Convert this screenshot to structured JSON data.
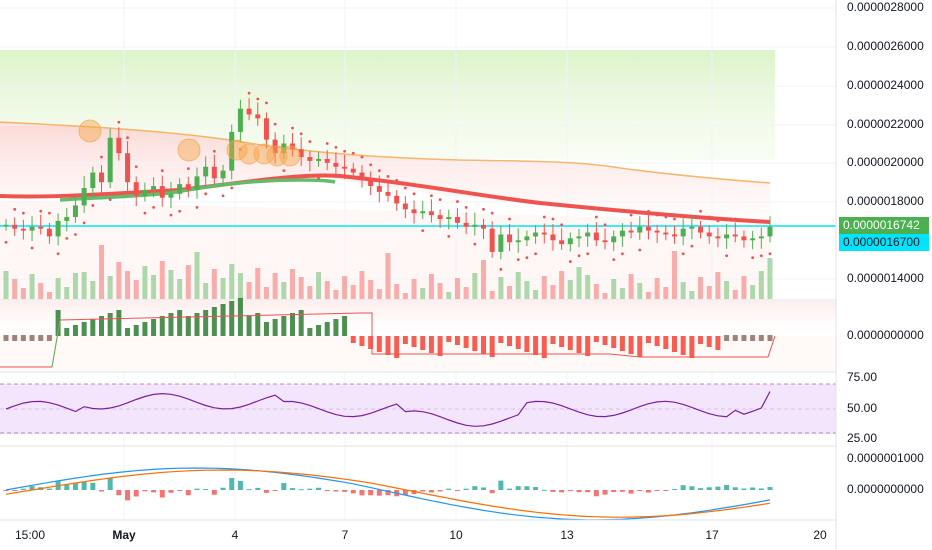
{
  "price_axis": {
    "labels": [
      "0.0000028000",
      "0.0000026000",
      "0.0000024000",
      "0.0000022000",
      "0.0000020000",
      "0.0000018000",
      "0.0000014000"
    ],
    "last_price": "0.0000016742",
    "last_price_color": "#4caf50",
    "line_price": "0.0000016700",
    "line_price_color": "#00e5ff"
  },
  "oscillator_axis": {
    "label": "0.0000000000"
  },
  "rsi_axis": {
    "labels": [
      "75.00",
      "50.00",
      "25.00"
    ]
  },
  "macd_axis": {
    "labels": [
      "0.0000001000",
      "0.0000000000"
    ]
  },
  "time_axis": {
    "labels": [
      "15:00",
      "May",
      "4",
      "7",
      "10",
      "13",
      "17",
      "20"
    ]
  },
  "colors": {
    "up": "#4caf50",
    "down": "#ef5350",
    "ema_line": "#ef5350",
    "rsi_line": "#7b1fa2",
    "macd_line": "#2196f3",
    "signal_line": "#ff6d00",
    "horizontal_line": "#00e5ff"
  },
  "chart_data": {
    "type": "candlestick",
    "y_range": [
      1.3e-06,
      2.9e-06
    ],
    "series": [
      {
        "name": "",
        "values": [
          1.68,
          1.66,
          1.65,
          1.67,
          1.66,
          1.62,
          1.7,
          1.72,
          1.78,
          1.87,
          1.95,
          1.9,
          2.13,
          2.05,
          1.9,
          1.83,
          1.86,
          1.88,
          1.82,
          1.84,
          1.89,
          1.86,
          1.93,
          1.98,
          1.92,
          1.96,
          2.16,
          2.28,
          2.25,
          2.23,
          2.12,
          2.05,
          2.1,
          2.07,
          2.03,
          2.01,
          2.02,
          2.0,
          1.98,
          1.97,
          1.95,
          1.91,
          1.88,
          1.85,
          1.83,
          1.79,
          1.76,
          1.74,
          1.75,
          1.73,
          1.71,
          1.72,
          1.69,
          1.67,
          1.68,
          1.66,
          1.54,
          1.63,
          1.59,
          1.6,
          1.62,
          1.64,
          1.63,
          1.6,
          1.58,
          1.61,
          1.62,
          1.64,
          1.6,
          1.59,
          1.62,
          1.65,
          1.64,
          1.67,
          1.65,
          1.64,
          1.63,
          1.62,
          1.66,
          1.67,
          1.64,
          1.62,
          1.61,
          1.63,
          1.62,
          1.6,
          1.61,
          1.62,
          1.67
        ]
      }
    ]
  }
}
